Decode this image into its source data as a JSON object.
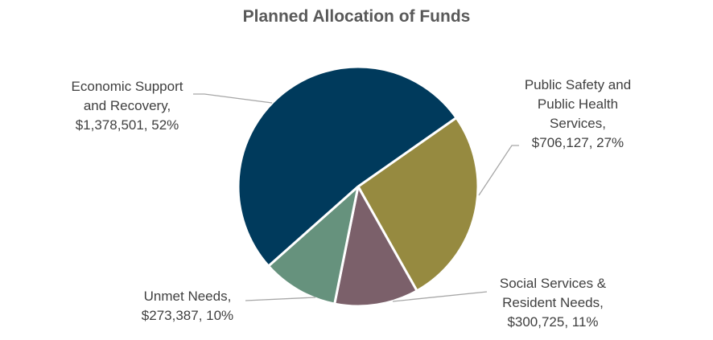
{
  "chart_data": {
    "type": "pie",
    "title": "Planned Allocation of Funds",
    "start_angle_deg": 55,
    "direction": "clockwise",
    "slices": [
      {
        "name": "Public Safety and Public Health Services",
        "value": 706127,
        "percent": 27,
        "color": "#968a40",
        "label_lines": [
          "Public Safety and",
          "Public Health",
          "Services,",
          "$706,127, 27%"
        ]
      },
      {
        "name": "Social Services & Resident Needs",
        "value": 300725,
        "percent": 11,
        "color": "#7b606a",
        "label_lines": [
          "Social Services &",
          "Resident Needs,",
          "$300,725, 11%"
        ]
      },
      {
        "name": "Unmet Needs",
        "value": 273387,
        "percent": 10,
        "color": "#66927d",
        "label_lines": [
          "Unmet Needs,",
          "$273,387, 10%"
        ]
      },
      {
        "name": "Economic Support and Recovery",
        "value": 1378501,
        "percent": 52,
        "color": "#003a5c",
        "label_lines": [
          "Economic Support",
          "and Recovery,",
          "$1,378,501, 52%"
        ]
      }
    ]
  }
}
